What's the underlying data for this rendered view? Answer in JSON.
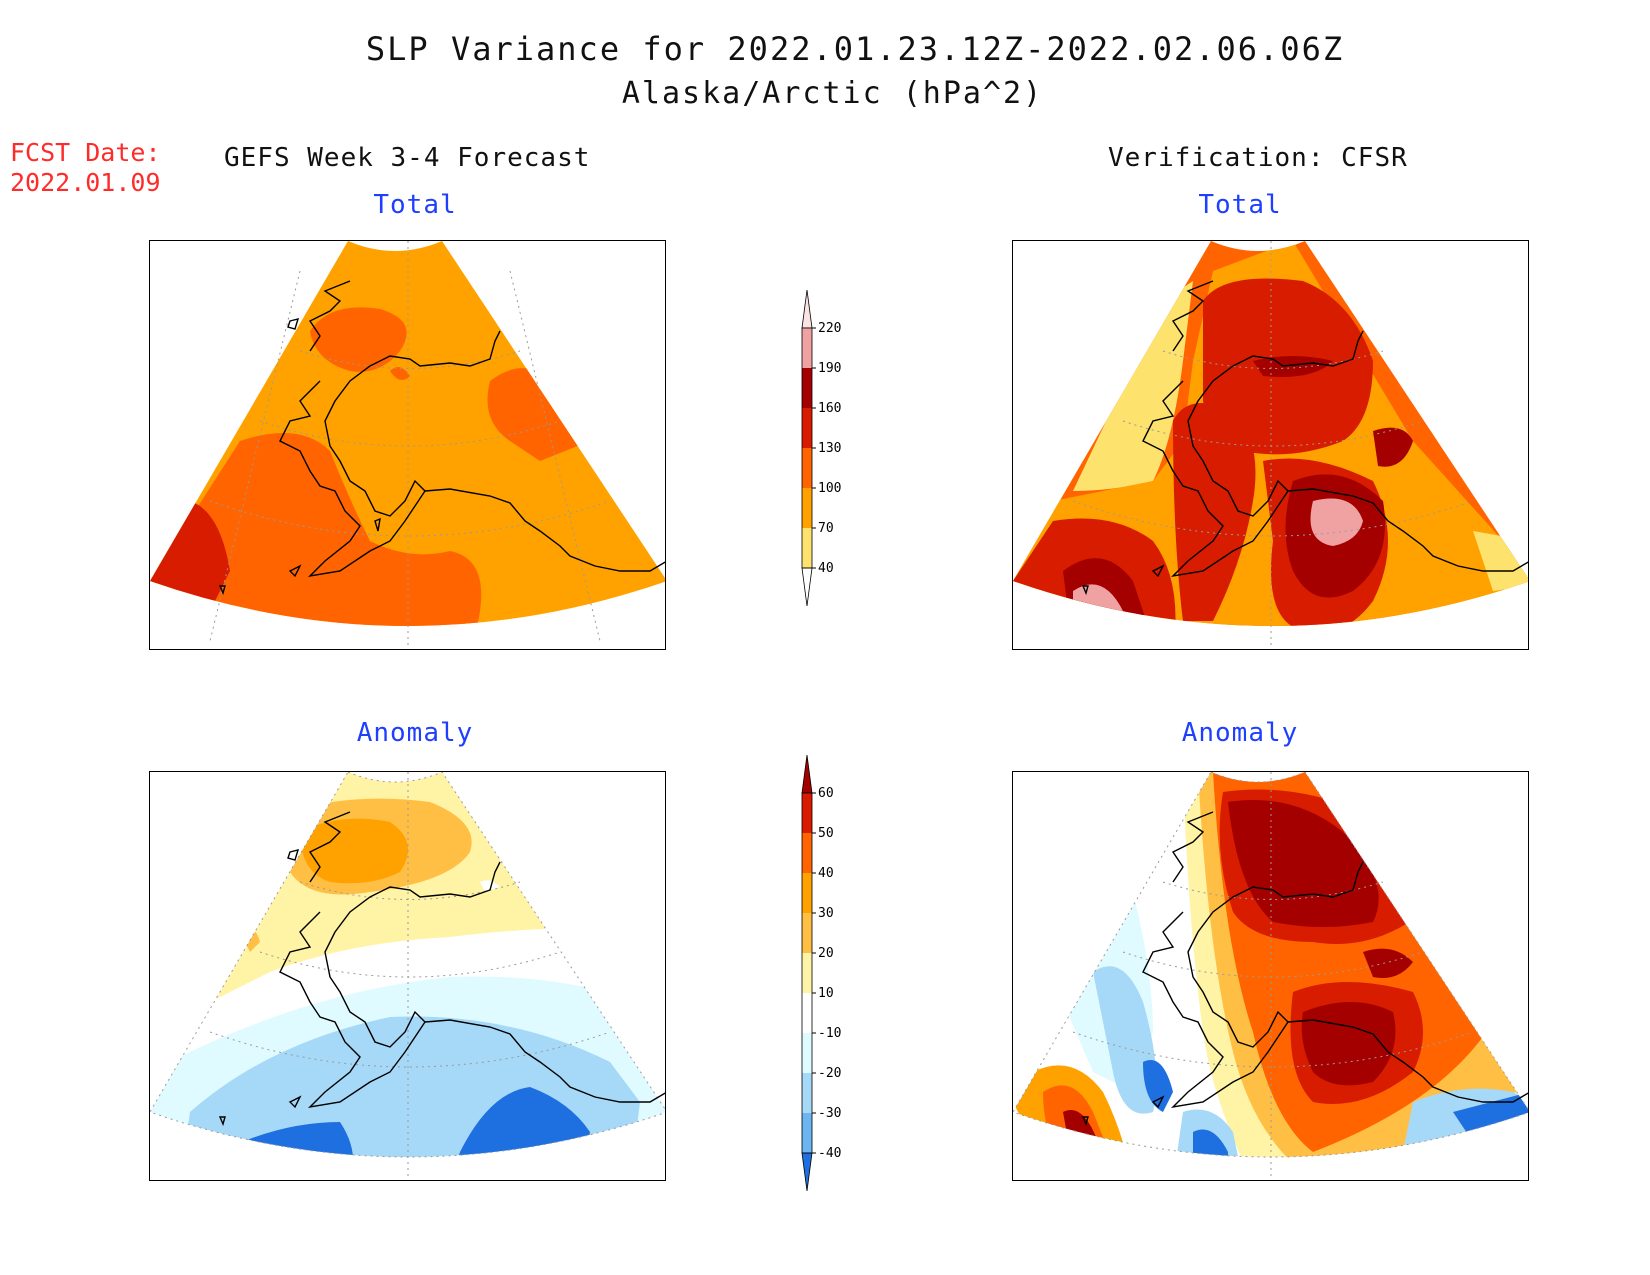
{
  "header": {
    "title": "SLP Variance for 2022.01.23.12Z-2022.02.06.06Z",
    "subtitle": "Alaska/Arctic (hPa^2)",
    "fcst_label": "FCST Date:",
    "fcst_date": "2022.01.09"
  },
  "columns": {
    "left": "GEFS Week 3-4 Forecast",
    "right": "Verification: CFSR"
  },
  "panels": {
    "total_label": "Total",
    "anomaly_label": "Anomaly"
  },
  "colorbar_total": {
    "ticks": [
      "220",
      "190",
      "160",
      "130",
      "100",
      "70",
      "40"
    ],
    "colors": [
      "#fbe3e3",
      "#f0a2a2",
      "#a50000",
      "#d81c00",
      "#ff6400",
      "#ffa200",
      "#fde26e",
      "#ffffff"
    ]
  },
  "colorbar_anomaly": {
    "ticks": [
      "60",
      "50",
      "40",
      "30",
      "20",
      "10",
      "-10",
      "-20",
      "-30",
      "-40"
    ],
    "colors": [
      "#a50000",
      "#d81c00",
      "#ff6400",
      "#ffa200",
      "#ffbf44",
      "#fff3a6",
      "#ffffff",
      "#e0fbff",
      "#a6d8f7",
      "#6cb5f0",
      "#1e6fe0"
    ]
  }
}
